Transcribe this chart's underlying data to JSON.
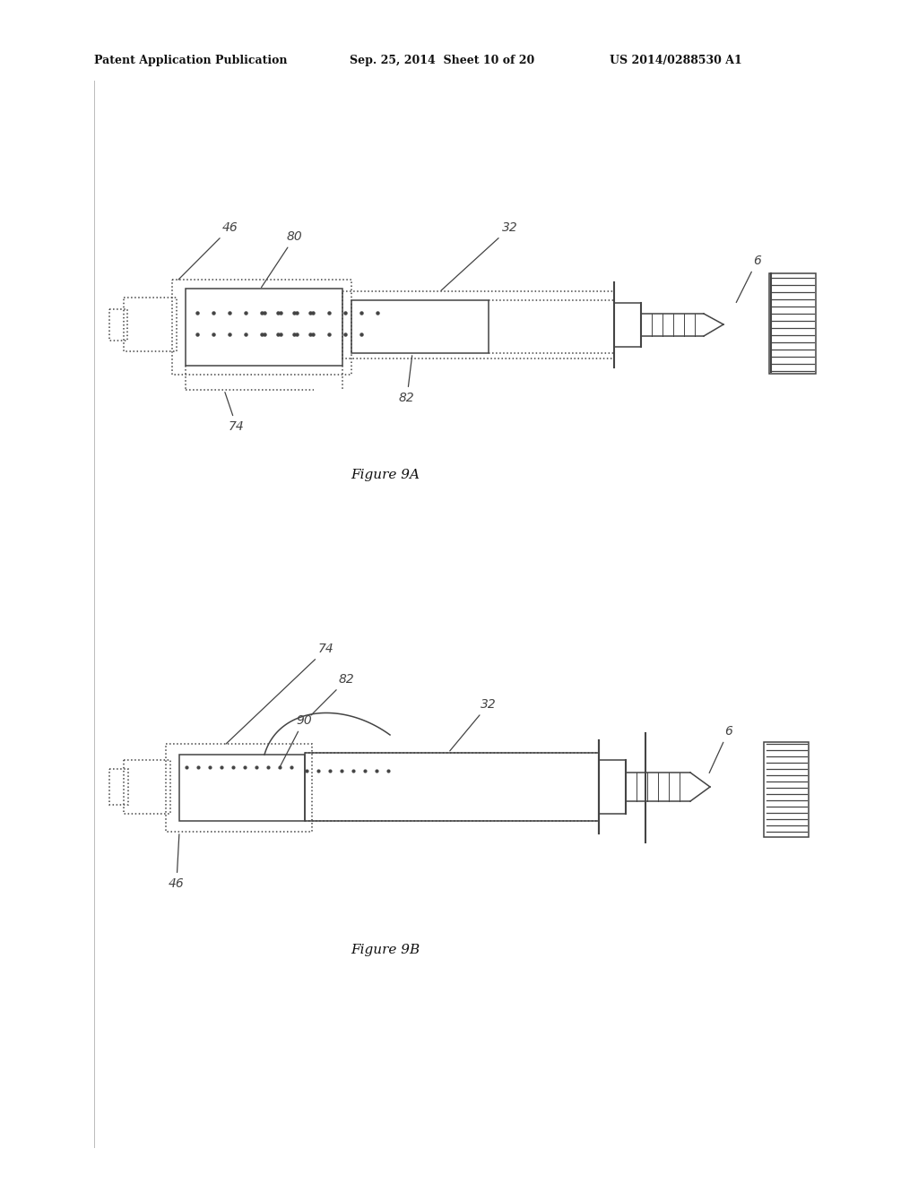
{
  "bg_color": "#ffffff",
  "line_color": "#444444",
  "text_color": "#111111",
  "header_left": "Patent Application Publication",
  "header_mid": "Sep. 25, 2014  Sheet 10 of 20",
  "header_right": "US 2014/0288530 A1",
  "fig9a_caption": "Figure 9A",
  "fig9b_caption": "Figure 9B"
}
